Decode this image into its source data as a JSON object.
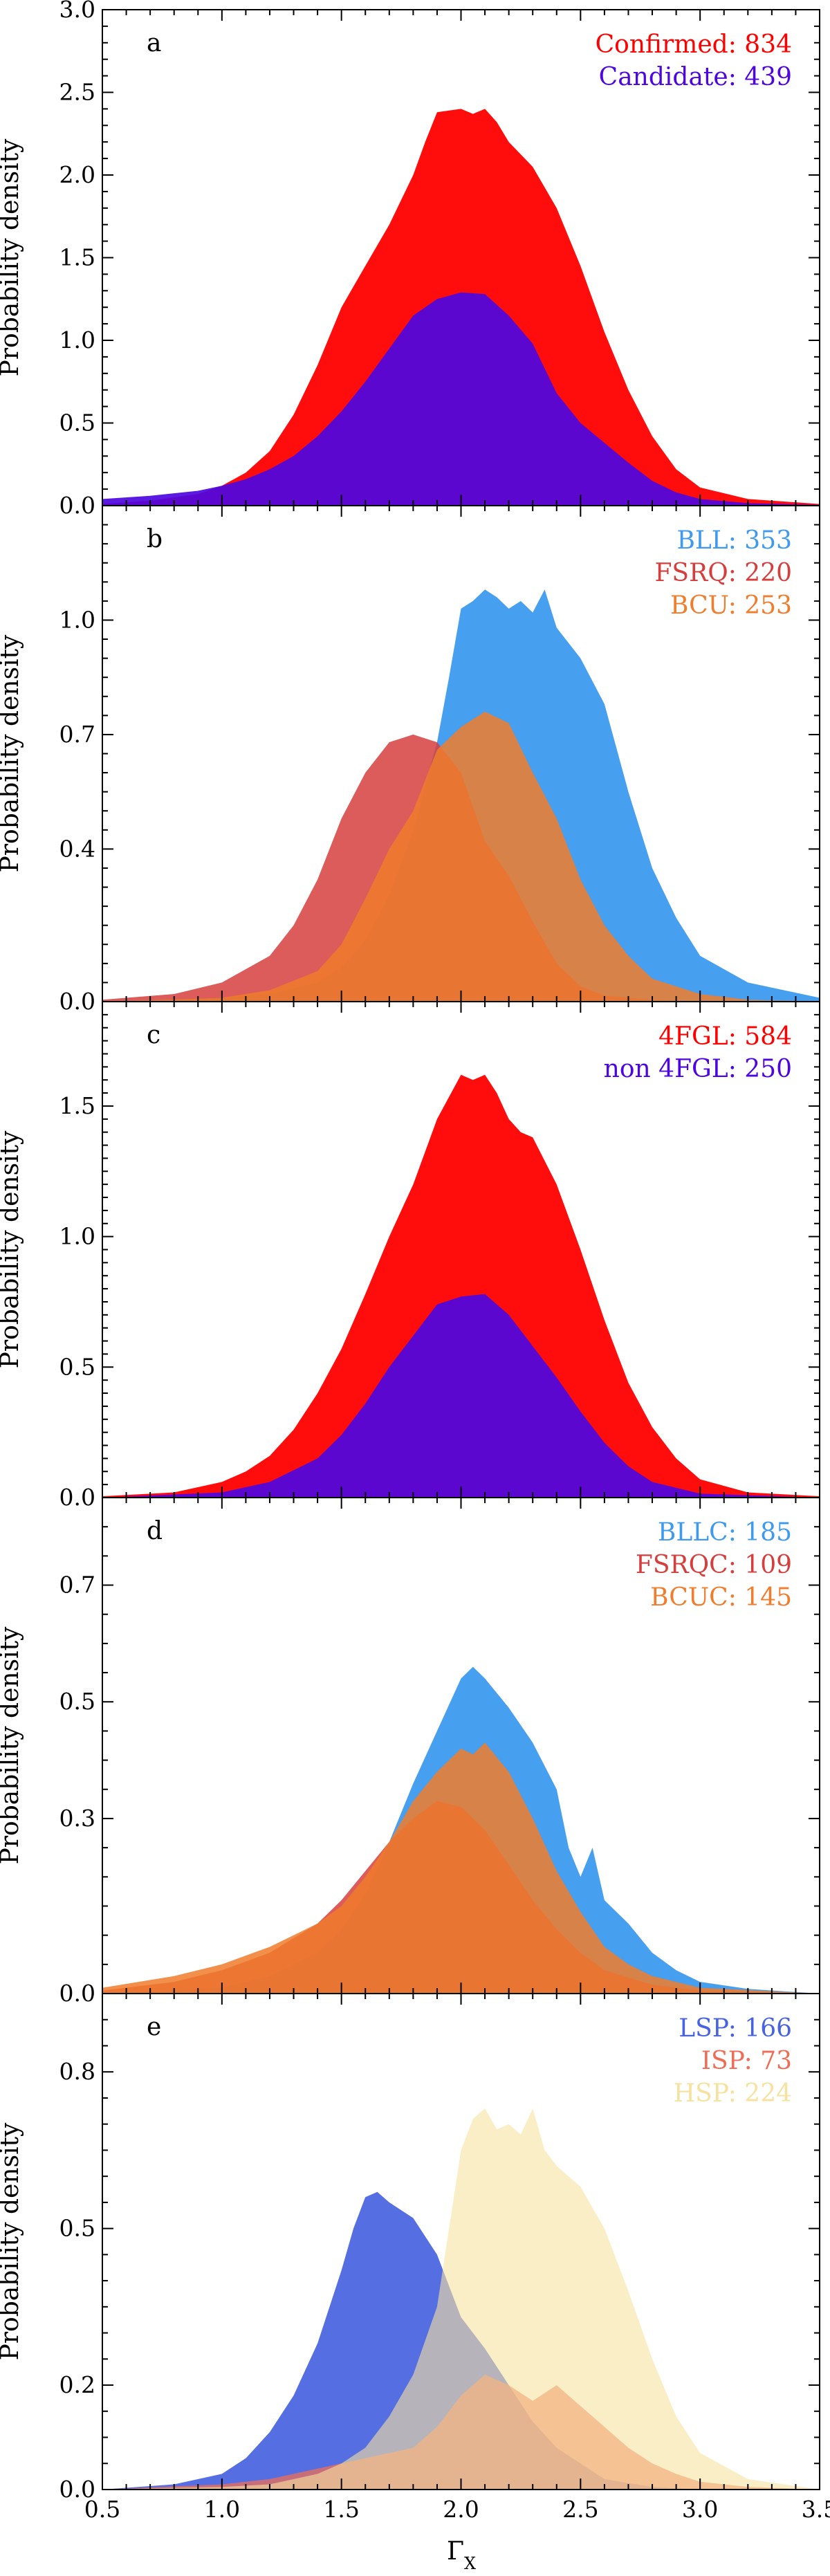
{
  "figure": {
    "xlabel_main": "Γ",
    "xlabel_sub": "X",
    "xticks": [
      "0.5",
      "1.0",
      "1.5",
      "2.0",
      "2.5",
      "3.0",
      "3.5"
    ]
  },
  "chart_data": [
    {
      "type": "area",
      "panel_label": "a",
      "ylabel": "Probability density",
      "xlim": [
        0.5,
        3.5
      ],
      "ylim": [
        0,
        3.0
      ],
      "yticks": [
        "0.0",
        "0.5",
        "1.0",
        "1.5",
        "2.0",
        "2.5",
        "3.0"
      ],
      "ytick_values": [
        0,
        0.5,
        1.0,
        1.5,
        2.0,
        2.5,
        3.0
      ],
      "legend_position": "top-right",
      "series": [
        {
          "legend": "Confirmed: 834",
          "color": "#ff0000",
          "opacity": 0.95,
          "x": [
            0.5,
            0.7,
            0.9,
            1.0,
            1.1,
            1.2,
            1.3,
            1.4,
            1.5,
            1.6,
            1.7,
            1.8,
            1.85,
            1.9,
            2.0,
            2.05,
            2.1,
            2.15,
            2.2,
            2.3,
            2.4,
            2.5,
            2.6,
            2.7,
            2.8,
            2.9,
            3.0,
            3.2,
            3.5
          ],
          "y": [
            0.01,
            0.03,
            0.07,
            0.12,
            0.2,
            0.33,
            0.55,
            0.85,
            1.2,
            1.45,
            1.7,
            2.0,
            2.2,
            2.38,
            2.4,
            2.37,
            2.4,
            2.32,
            2.2,
            2.05,
            1.8,
            1.45,
            1.05,
            0.7,
            0.42,
            0.22,
            0.11,
            0.04,
            0.01
          ]
        },
        {
          "legend": "Candidate: 439",
          "color": "#4d06e0",
          "opacity": 0.92,
          "x": [
            0.5,
            0.7,
            0.9,
            1.0,
            1.1,
            1.2,
            1.3,
            1.4,
            1.5,
            1.6,
            1.7,
            1.8,
            1.9,
            2.0,
            2.1,
            2.2,
            2.3,
            2.4,
            2.5,
            2.6,
            2.7,
            2.8,
            2.9,
            3.0,
            3.2,
            3.5
          ],
          "y": [
            0.04,
            0.06,
            0.09,
            0.12,
            0.16,
            0.22,
            0.3,
            0.42,
            0.57,
            0.75,
            0.95,
            1.15,
            1.25,
            1.29,
            1.28,
            1.15,
            0.98,
            0.68,
            0.5,
            0.38,
            0.26,
            0.15,
            0.08,
            0.04,
            0.015,
            0.005
          ]
        }
      ]
    },
    {
      "type": "area",
      "panel_label": "b",
      "ylabel": "Probability density",
      "xlim": [
        0.5,
        3.5
      ],
      "ylim": [
        0,
        1.3
      ],
      "yticks": [
        "0.0",
        "0.4",
        "0.7",
        "1.0"
      ],
      "ytick_values": [
        0,
        0.4,
        0.7,
        1.0
      ],
      "legend_position": "top-right",
      "series": [
        {
          "legend": "BLL: 353",
          "color": "#3d9aee",
          "opacity": 0.95,
          "x": [
            0.5,
            1.0,
            1.2,
            1.4,
            1.5,
            1.6,
            1.7,
            1.8,
            1.9,
            1.95,
            2.0,
            2.05,
            2.1,
            2.15,
            2.2,
            2.25,
            2.3,
            2.35,
            2.4,
            2.5,
            2.6,
            2.7,
            2.8,
            2.9,
            3.0,
            3.2,
            3.5
          ],
          "y": [
            0.0,
            0.01,
            0.02,
            0.05,
            0.09,
            0.16,
            0.28,
            0.45,
            0.68,
            0.85,
            1.03,
            1.05,
            1.08,
            1.06,
            1.03,
            1.05,
            1.02,
            1.08,
            0.98,
            0.9,
            0.78,
            0.55,
            0.35,
            0.22,
            0.12,
            0.05,
            0.01
          ]
        },
        {
          "legend": "FSRQ: 220",
          "color": "#d63e3e",
          "opacity": 0.85,
          "x": [
            0.5,
            0.8,
            1.0,
            1.2,
            1.3,
            1.4,
            1.5,
            1.6,
            1.7,
            1.8,
            1.9,
            2.0,
            2.1,
            2.2,
            2.3,
            2.4,
            2.5,
            2.6,
            2.8,
            3.0,
            3.5
          ],
          "y": [
            0.005,
            0.02,
            0.05,
            0.12,
            0.2,
            0.32,
            0.48,
            0.6,
            0.68,
            0.7,
            0.68,
            0.6,
            0.42,
            0.33,
            0.21,
            0.1,
            0.04,
            0.015,
            0.005,
            0.0,
            0.0
          ]
        },
        {
          "legend": "BCU: 253",
          "color": "#f07d2c",
          "opacity": 0.85,
          "x": [
            0.5,
            1.0,
            1.2,
            1.4,
            1.5,
            1.6,
            1.7,
            1.8,
            1.9,
            2.0,
            2.1,
            2.2,
            2.3,
            2.4,
            2.5,
            2.6,
            2.7,
            2.8,
            3.0,
            3.2,
            3.5
          ],
          "y": [
            0.0,
            0.01,
            0.03,
            0.08,
            0.15,
            0.27,
            0.4,
            0.5,
            0.66,
            0.72,
            0.76,
            0.73,
            0.6,
            0.48,
            0.32,
            0.2,
            0.12,
            0.06,
            0.02,
            0.005,
            0.0
          ]
        }
      ]
    },
    {
      "type": "area",
      "panel_label": "c",
      "ylabel": "Probability density",
      "xlim": [
        0.5,
        3.5
      ],
      "ylim": [
        0,
        1.9
      ],
      "yticks": [
        "0.0",
        "0.5",
        "1.0",
        "1.5"
      ],
      "ytick_values": [
        0,
        0.5,
        1.0,
        1.5
      ],
      "legend_position": "top-right",
      "series": [
        {
          "legend": "4FGL: 584",
          "color": "#ff0000",
          "opacity": 0.95,
          "x": [
            0.5,
            0.8,
            1.0,
            1.1,
            1.2,
            1.3,
            1.4,
            1.5,
            1.6,
            1.7,
            1.8,
            1.9,
            2.0,
            2.05,
            2.1,
            2.15,
            2.2,
            2.25,
            2.3,
            2.4,
            2.5,
            2.6,
            2.7,
            2.8,
            2.9,
            3.0,
            3.2,
            3.5
          ],
          "y": [
            0.005,
            0.02,
            0.06,
            0.1,
            0.16,
            0.26,
            0.4,
            0.57,
            0.78,
            1.0,
            1.2,
            1.45,
            1.62,
            1.6,
            1.62,
            1.55,
            1.45,
            1.4,
            1.38,
            1.2,
            0.95,
            0.68,
            0.44,
            0.27,
            0.15,
            0.07,
            0.02,
            0.005
          ]
        },
        {
          "legend": "non 4FGL: 250",
          "color": "#4d06e0",
          "opacity": 0.92,
          "x": [
            0.5,
            1.0,
            1.2,
            1.4,
            1.5,
            1.6,
            1.7,
            1.8,
            1.9,
            2.0,
            2.1,
            2.2,
            2.3,
            2.4,
            2.5,
            2.6,
            2.7,
            2.8,
            3.0,
            3.5
          ],
          "y": [
            0.0,
            0.02,
            0.06,
            0.15,
            0.24,
            0.36,
            0.5,
            0.62,
            0.74,
            0.77,
            0.78,
            0.7,
            0.58,
            0.46,
            0.33,
            0.21,
            0.12,
            0.06,
            0.015,
            0.0
          ]
        }
      ]
    },
    {
      "type": "area",
      "panel_label": "d",
      "ylabel": "Probability density",
      "xlim": [
        0.5,
        3.5
      ],
      "ylim": [
        0,
        0.85
      ],
      "yticks": [
        "0.0",
        "0.3",
        "0.5",
        "0.7"
      ],
      "ytick_values": [
        0,
        0.3,
        0.5,
        0.7
      ],
      "legend_position": "top-right",
      "series": [
        {
          "legend": "BLLC: 185",
          "color": "#3d9aee",
          "opacity": 0.95,
          "x": [
            0.5,
            1.0,
            1.2,
            1.4,
            1.5,
            1.6,
            1.7,
            1.8,
            1.9,
            2.0,
            2.05,
            2.1,
            2.2,
            2.3,
            2.4,
            2.45,
            2.5,
            2.55,
            2.6,
            2.7,
            2.8,
            2.9,
            3.0,
            3.2,
            3.5
          ],
          "y": [
            0.0,
            0.01,
            0.03,
            0.07,
            0.11,
            0.17,
            0.26,
            0.36,
            0.45,
            0.54,
            0.56,
            0.54,
            0.49,
            0.43,
            0.35,
            0.25,
            0.2,
            0.25,
            0.16,
            0.12,
            0.07,
            0.04,
            0.02,
            0.008,
            0.0
          ]
        },
        {
          "legend": "FSRQC: 109",
          "color": "#d63e3e",
          "opacity": 0.85,
          "x": [
            0.5,
            0.8,
            1.0,
            1.2,
            1.4,
            1.5,
            1.6,
            1.7,
            1.8,
            1.9,
            2.0,
            2.1,
            2.2,
            2.3,
            2.4,
            2.5,
            2.6,
            2.8,
            3.0,
            3.5
          ],
          "y": [
            0.005,
            0.02,
            0.04,
            0.07,
            0.12,
            0.16,
            0.21,
            0.26,
            0.3,
            0.33,
            0.32,
            0.28,
            0.22,
            0.16,
            0.11,
            0.07,
            0.04,
            0.015,
            0.005,
            0.0
          ]
        },
        {
          "legend": "BCUC: 145",
          "color": "#f07d2c",
          "opacity": 0.85,
          "x": [
            0.5,
            0.8,
            1.0,
            1.2,
            1.4,
            1.5,
            1.6,
            1.7,
            1.8,
            1.9,
            2.0,
            2.05,
            2.1,
            2.2,
            2.3,
            2.4,
            2.5,
            2.6,
            2.7,
            2.8,
            3.0,
            3.5
          ],
          "y": [
            0.01,
            0.03,
            0.05,
            0.08,
            0.12,
            0.15,
            0.2,
            0.26,
            0.33,
            0.38,
            0.42,
            0.41,
            0.43,
            0.38,
            0.3,
            0.21,
            0.14,
            0.08,
            0.05,
            0.03,
            0.01,
            0.0
          ]
        }
      ]
    },
    {
      "type": "area",
      "panel_label": "e",
      "ylabel": "Probability density",
      "xlim": [
        0.5,
        3.5
      ],
      "ylim": [
        0,
        0.95
      ],
      "yticks": [
        "0.0",
        "0.2",
        "0.5",
        "0.8"
      ],
      "ytick_values": [
        0,
        0.2,
        0.5,
        0.8
      ],
      "legend_position": "top-right",
      "series": [
        {
          "legend": "LSP: 166",
          "color": "#4763e0",
          "opacity": 0.92,
          "x": [
            0.5,
            0.8,
            1.0,
            1.1,
            1.2,
            1.3,
            1.4,
            1.5,
            1.55,
            1.6,
            1.65,
            1.7,
            1.8,
            1.9,
            1.95,
            2.0,
            2.1,
            2.2,
            2.3,
            2.4,
            2.5,
            2.6,
            2.8,
            3.0
          ],
          "y": [
            0.0,
            0.01,
            0.03,
            0.06,
            0.11,
            0.18,
            0.28,
            0.42,
            0.5,
            0.56,
            0.57,
            0.55,
            0.52,
            0.45,
            0.39,
            0.33,
            0.27,
            0.2,
            0.13,
            0.08,
            0.05,
            0.02,
            0.005,
            0.0
          ]
        },
        {
          "legend": "ISP: 73",
          "color": "#ee6d57",
          "opacity": 0.75,
          "x": [
            0.5,
            1.0,
            1.2,
            1.4,
            1.6,
            1.8,
            1.9,
            2.0,
            2.1,
            2.2,
            2.3,
            2.4,
            2.5,
            2.6,
            2.7,
            2.8,
            2.9,
            3.0,
            3.2,
            3.5
          ],
          "y": [
            0.0,
            0.01,
            0.02,
            0.04,
            0.06,
            0.08,
            0.12,
            0.18,
            0.22,
            0.2,
            0.17,
            0.2,
            0.16,
            0.12,
            0.08,
            0.05,
            0.03,
            0.015,
            0.005,
            0.0
          ]
        },
        {
          "legend": "HSP: 224",
          "color": "#f6e2a0",
          "opacity": 0.6,
          "x": [
            0.5,
            1.0,
            1.2,
            1.4,
            1.5,
            1.6,
            1.7,
            1.8,
            1.9,
            1.95,
            2.0,
            2.05,
            2.1,
            2.15,
            2.2,
            2.25,
            2.3,
            2.35,
            2.4,
            2.5,
            2.6,
            2.7,
            2.8,
            2.9,
            3.0,
            3.2,
            3.5
          ],
          "y": [
            0.0,
            0.005,
            0.01,
            0.03,
            0.05,
            0.08,
            0.14,
            0.22,
            0.35,
            0.5,
            0.65,
            0.71,
            0.73,
            0.69,
            0.7,
            0.68,
            0.73,
            0.65,
            0.62,
            0.58,
            0.5,
            0.38,
            0.25,
            0.14,
            0.07,
            0.02,
            0.0
          ]
        }
      ]
    }
  ]
}
